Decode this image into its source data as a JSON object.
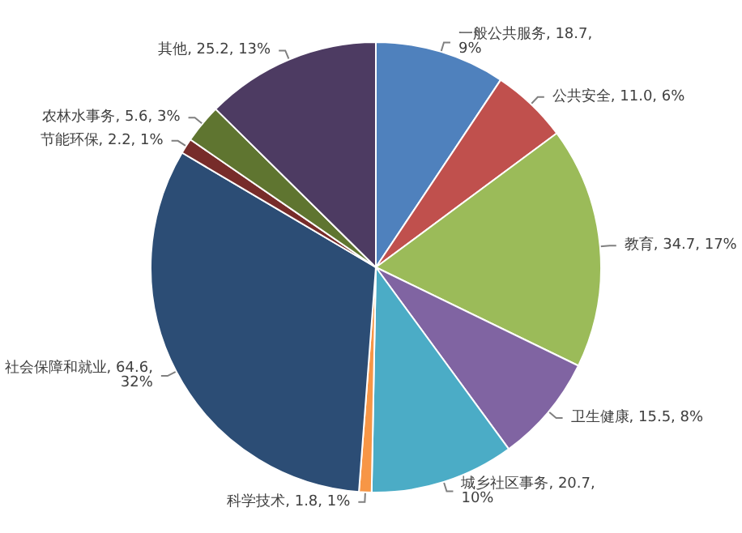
{
  "chart_data": {
    "type": "pie",
    "categories": [
      "一般公共服务",
      "公共安全",
      "教育",
      "卫生健康",
      "城乡社区事务",
      "科学技术",
      "社会保障和就业",
      "节能环保",
      "农林水事务",
      "其他"
    ],
    "values": [
      18.7,
      11.0,
      34.7,
      15.5,
      20.7,
      1.8,
      64.6,
      2.2,
      5.6,
      25.2
    ],
    "value_labels": [
      "18.7, 9%",
      "11.0, 6%",
      "34.7, 17%",
      "15.5, 8%",
      "20.7, 10%",
      "1.8, 1%",
      "64.6, 32%",
      "2.2, 1%",
      "5.6, 3%",
      "25.2, 13%"
    ],
    "colors": [
      "#4f81bd",
      "#c0504d",
      "#9bbb59",
      "#8064a2",
      "#4bacc6",
      "#f79646",
      "#2c4d75",
      "#772c2a",
      "#5f7530",
      "#4d3b62"
    ]
  }
}
